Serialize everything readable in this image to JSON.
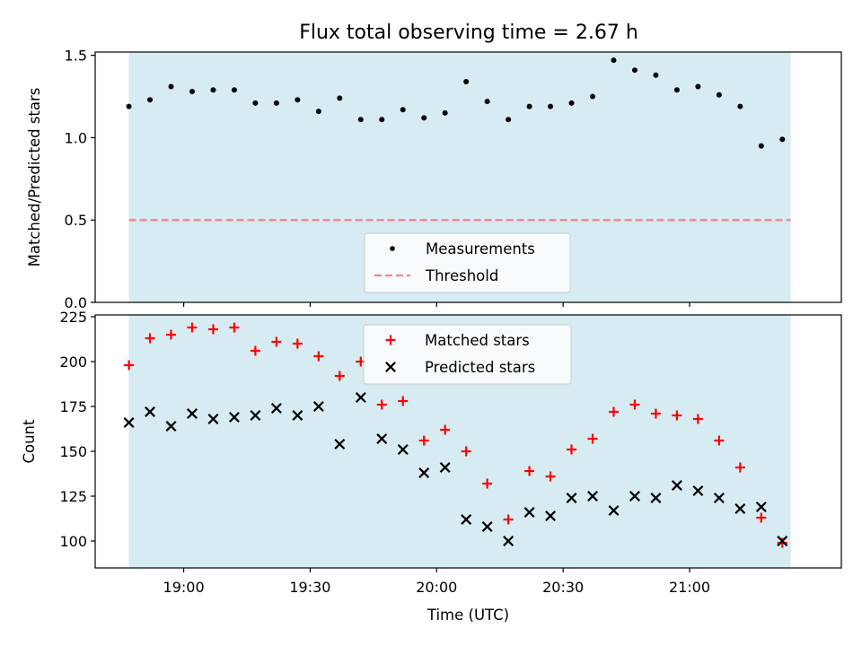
{
  "title": "Flux total observing time = 2.67 h",
  "colors": {
    "shade": "#add8e6",
    "measurement": "#000000",
    "threshold": "#ff7f7f",
    "matched": "#ff0000",
    "predicted": "#000000"
  },
  "chart_data": [
    {
      "type": "scatter",
      "ylabel": "Matched/Predicted stars",
      "ylim": [
        0,
        1.52
      ],
      "yticks": [
        0.0,
        0.5,
        1.0,
        1.5
      ],
      "ytick_labels": [
        "0.0",
        "0.5",
        "1.0",
        "1.5"
      ],
      "threshold": 0.5,
      "shaded_span": [
        "18:47",
        "21:24"
      ],
      "legend_position": "lower center",
      "series": [
        {
          "name": "Measurements",
          "marker": "dot",
          "x": [
            "18:47",
            "18:52",
            "18:57",
            "19:02",
            "19:07",
            "19:12",
            "19:17",
            "19:22",
            "19:27",
            "19:32",
            "19:37",
            "19:42",
            "19:47",
            "19:52",
            "19:57",
            "20:02",
            "20:07",
            "20:12",
            "20:17",
            "20:22",
            "20:27",
            "20:32",
            "20:37",
            "20:42",
            "20:47",
            "20:52",
            "20:57",
            "21:02",
            "21:07",
            "21:12",
            "21:17",
            "21:22"
          ],
          "values": [
            1.19,
            1.23,
            1.31,
            1.28,
            1.29,
            1.29,
            1.21,
            1.21,
            1.23,
            1.16,
            1.24,
            1.11,
            1.11,
            1.17,
            1.12,
            1.15,
            1.34,
            1.22,
            1.11,
            1.19,
            1.19,
            1.21,
            1.25,
            1.47,
            1.41,
            1.38,
            1.29,
            1.31,
            1.26,
            1.19,
            0.95,
            0.99
          ]
        },
        {
          "name": "Threshold",
          "style": "dashed",
          "values": [
            0.5,
            0.5
          ]
        }
      ]
    },
    {
      "type": "scatter",
      "xlabel": "Time (UTC)",
      "ylabel": "Count",
      "ylim": [
        85,
        226
      ],
      "yticks": [
        100,
        125,
        150,
        175,
        200,
        225
      ],
      "ytick_labels": [
        "100",
        "125",
        "150",
        "175",
        "200",
        "225"
      ],
      "xlim": [
        "18:39",
        "21:36"
      ],
      "xticks": [
        "19:00",
        "19:30",
        "20:00",
        "20:30",
        "21:00"
      ],
      "xtick_labels": [
        "19:00",
        "19:30",
        "20:00",
        "20:30",
        "21:00"
      ],
      "shaded_span": [
        "18:47",
        "21:24"
      ],
      "legend_position": "upper center",
      "x": [
        "18:47",
        "18:52",
        "18:57",
        "19:02",
        "19:07",
        "19:12",
        "19:17",
        "19:22",
        "19:27",
        "19:32",
        "19:37",
        "19:42",
        "19:47",
        "19:52",
        "19:57",
        "20:02",
        "20:07",
        "20:12",
        "20:17",
        "20:22",
        "20:27",
        "20:32",
        "20:37",
        "20:42",
        "20:47",
        "20:52",
        "20:57",
        "21:02",
        "21:07",
        "21:12",
        "21:17",
        "21:22"
      ],
      "series": [
        {
          "name": "Matched stars",
          "marker": "plus",
          "values": [
            198,
            213,
            215,
            219,
            218,
            219,
            206,
            211,
            210,
            203,
            192,
            200,
            176,
            178,
            156,
            162,
            150,
            132,
            112,
            139,
            136,
            151,
            157,
            172,
            176,
            171,
            170,
            168,
            156,
            141,
            113,
            99
          ]
        },
        {
          "name": "Predicted stars",
          "marker": "x",
          "values": [
            166,
            172,
            164,
            171,
            168,
            169,
            170,
            174,
            170,
            175,
            154,
            180,
            157,
            151,
            138,
            141,
            112,
            108,
            100,
            116,
            114,
            124,
            125,
            117,
            125,
            124,
            131,
            128,
            124,
            118,
            119,
            100
          ]
        }
      ]
    }
  ]
}
